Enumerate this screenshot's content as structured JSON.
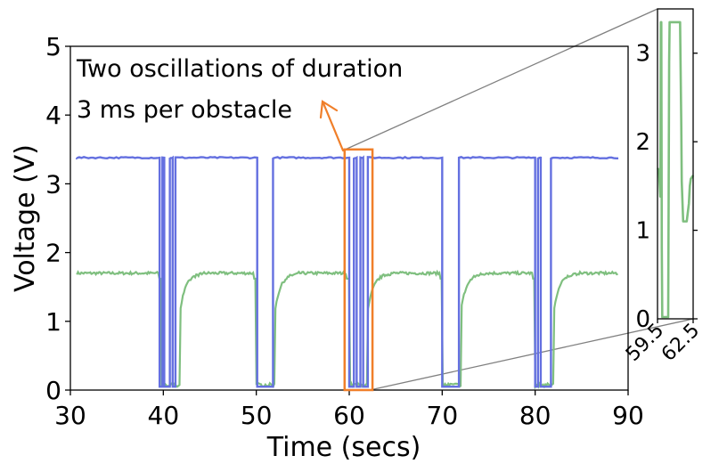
{
  "chart_data": [
    {
      "type": "line",
      "xlabel": "Time (secs)",
      "ylabel": "Voltage (V)",
      "xlim": [
        30,
        90
      ],
      "ylim": [
        0,
        5
      ],
      "xticks": [
        "30",
        "40",
        "50",
        "60",
        "70",
        "80",
        "90"
      ],
      "yticks": [
        "0",
        "1",
        "2",
        "3",
        "4",
        "5"
      ],
      "grid": false,
      "annotation": {
        "line1": "Two oscillations of duration",
        "line2": "3 ms per obstacle",
        "highlight_box": {
          "x": [
            59.5,
            62.5
          ],
          "y": [
            0,
            3.5
          ]
        }
      },
      "series": [
        {
          "color": "#6470e0",
          "baseline": 3.38,
          "low": 0.05,
          "events": [
            [
              [
                39.6,
                39.9
              ],
              [
                40.1,
                40.7
              ],
              [
                41.0,
                41.3
              ]
            ],
            [
              [
                50.1,
                51.8
              ]
            ],
            [
              [
                60.0,
                60.5
              ],
              [
                60.8,
                61.2
              ],
              [
                61.5,
                62.0
              ]
            ],
            [
              [
                70.0,
                71.8
              ]
            ],
            [
              [
                80.0,
                80.3
              ],
              [
                80.6,
                81.7
              ]
            ]
          ]
        },
        {
          "color": "#7fbf7f",
          "baseline": 1.7,
          "events_x": [
            39.8,
            50.0,
            60.0,
            70.0,
            80.0
          ]
        }
      ]
    },
    {
      "type": "line",
      "xlim": [
        59.5,
        62.5
      ],
      "ylim": [
        0,
        3.5
      ],
      "xticks": [
        "59.5",
        "62.5"
      ],
      "yticks": [
        "0",
        "1",
        "2",
        "3"
      ],
      "series": [
        {
          "color": "#7fbf7f",
          "x": [
            59.5,
            59.62,
            59.74,
            59.78,
            59.82,
            59.86,
            59.9,
            60.0,
            60.3,
            60.4,
            60.48,
            60.52,
            60.62,
            61.0,
            61.3,
            61.4,
            61.5,
            61.54,
            61.66,
            61.96,
            62.14,
            62.22,
            62.3,
            62.5
          ],
          "y": [
            1.7,
            1.68,
            1.38,
            3.35,
            3.35,
            0.8,
            0.02,
            0.02,
            0.02,
            0.02,
            2.9,
            3.35,
            3.35,
            3.35,
            3.35,
            3.35,
            2.2,
            1.55,
            1.1,
            1.1,
            1.3,
            1.5,
            1.58,
            1.62
          ]
        }
      ]
    }
  ]
}
